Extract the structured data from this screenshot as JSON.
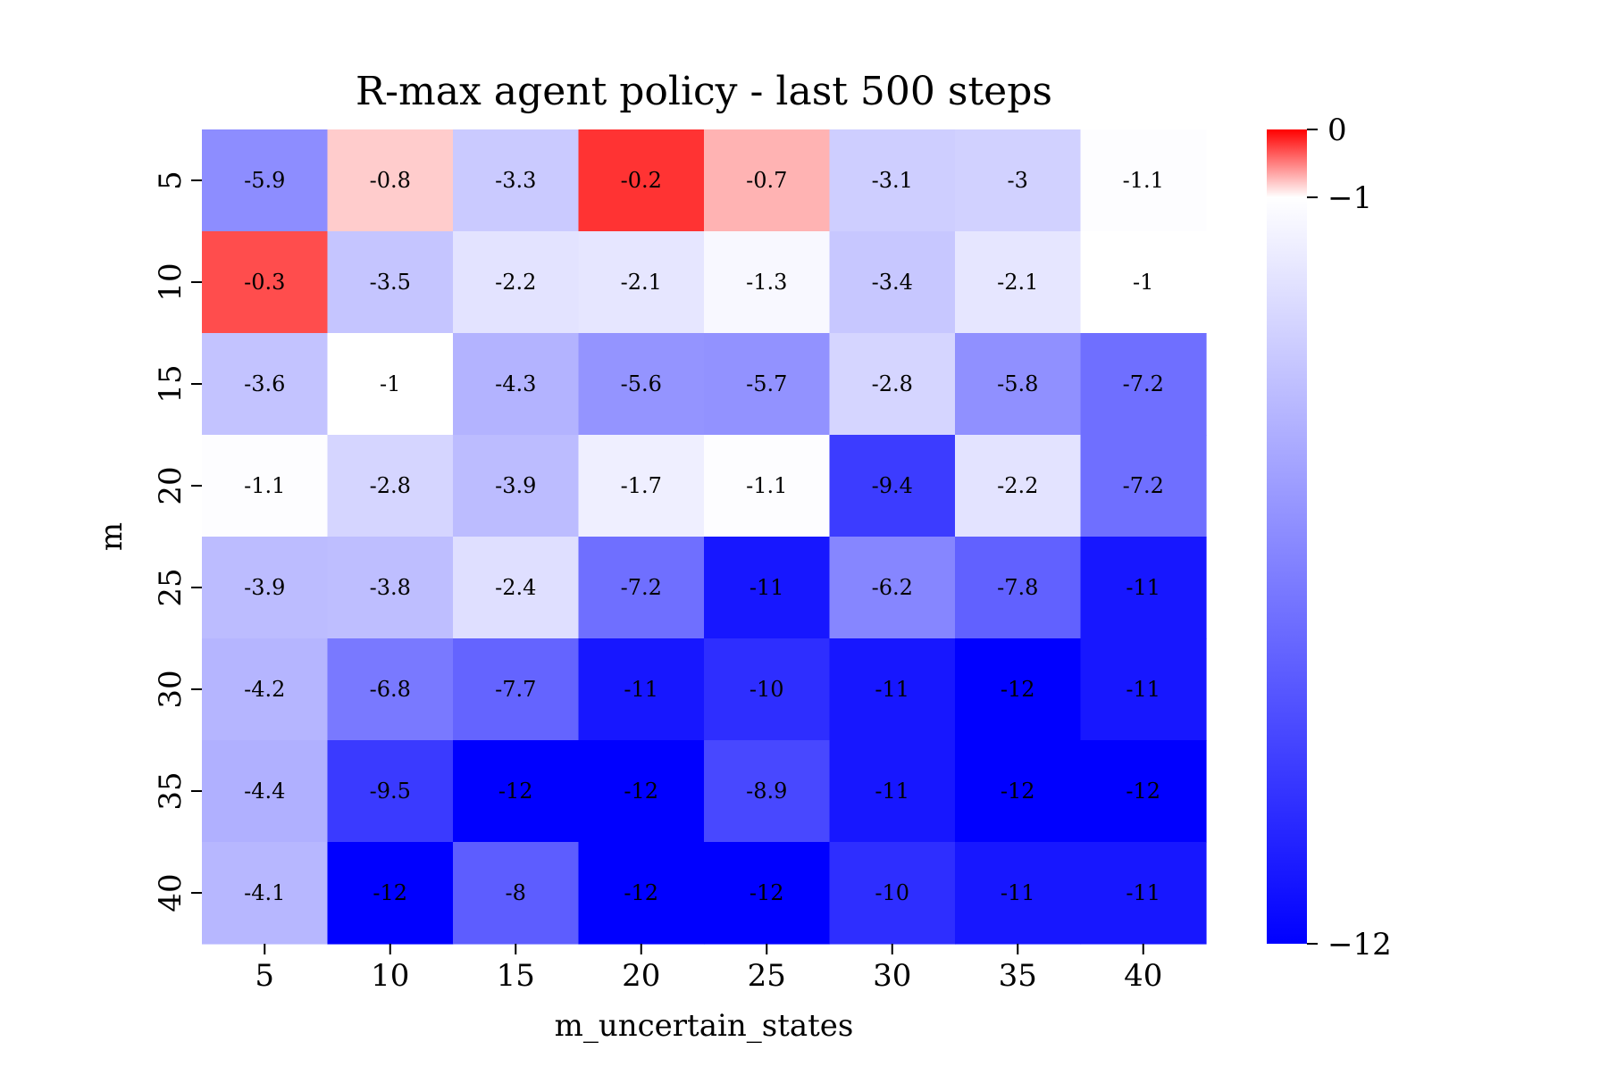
{
  "chart_data": {
    "type": "heatmap",
    "title": "R-max agent policy - last 500 steps",
    "xlabel": "m_uncertain_states",
    "ylabel": "m",
    "x_categories": [
      "5",
      "10",
      "15",
      "20",
      "25",
      "30",
      "35",
      "40"
    ],
    "y_categories": [
      "5",
      "10",
      "15",
      "20",
      "25",
      "30",
      "35",
      "40"
    ],
    "values": [
      [
        -5.9,
        -0.8,
        -3.3,
        -0.2,
        -0.7,
        -3.1,
        -3,
        -1.1
      ],
      [
        -0.3,
        -3.5,
        -2.2,
        -2.1,
        -1.3,
        -3.4,
        -2.1,
        -1
      ],
      [
        -3.6,
        -1,
        -4.3,
        -5.6,
        -5.7,
        -2.8,
        -5.8,
        -7.2
      ],
      [
        -1.1,
        -2.8,
        -3.9,
        -1.7,
        -1.1,
        -9.4,
        -2.2,
        -7.2
      ],
      [
        -3.9,
        -3.8,
        -2.4,
        -7.2,
        -11,
        -6.2,
        -7.8,
        -11
      ],
      [
        -4.2,
        -6.8,
        -7.7,
        -11,
        -10,
        -11,
        -12,
        -11
      ],
      [
        -4.4,
        -9.5,
        -12,
        -12,
        -8.9,
        -11,
        -12,
        -12
      ],
      [
        -4.1,
        -12,
        -8,
        -12,
        -12,
        -10,
        -11,
        -11
      ]
    ],
    "value_labels": [
      [
        "-5.9",
        "-0.8",
        "-3.3",
        "-0.2",
        "-0.7",
        "-3.1",
        "-3",
        "-1.1"
      ],
      [
        "-0.3",
        "-3.5",
        "-2.2",
        "-2.1",
        "-1.3",
        "-3.4",
        "-2.1",
        "-1"
      ],
      [
        "-3.6",
        "-1",
        "-4.3",
        "-5.6",
        "-5.7",
        "-2.8",
        "-5.8",
        "-7.2"
      ],
      [
        "-1.1",
        "-2.8",
        "-3.9",
        "-1.7",
        "-1.1",
        "-9.4",
        "-2.2",
        "-7.2"
      ],
      [
        "-3.9",
        "-3.8",
        "-2.4",
        "-7.2",
        "-11",
        "-6.2",
        "-7.8",
        "-11"
      ],
      [
        "-4.2",
        "-6.8",
        "-7.7",
        "-11",
        "-10",
        "-11",
        "-12",
        "-11"
      ],
      [
        "-4.4",
        "-9.5",
        "-12",
        "-12",
        "-8.9",
        "-11",
        "-12",
        "-12"
      ],
      [
        "-4.1",
        "-12",
        "-8",
        "-12",
        "-12",
        "-10",
        "-11",
        "-11"
      ]
    ],
    "color_scale": {
      "min": -12,
      "center": -1,
      "max": 0,
      "min_color": "#0000ff",
      "center_color": "#ffffff",
      "max_color": "#ff0000"
    },
    "colorbar_ticks": [
      {
        "value": 0,
        "label": "0"
      },
      {
        "value": -1,
        "label": "−1"
      },
      {
        "value": -12,
        "label": "−12"
      }
    ],
    "grid": false,
    "legend": "colorbar-right"
  }
}
